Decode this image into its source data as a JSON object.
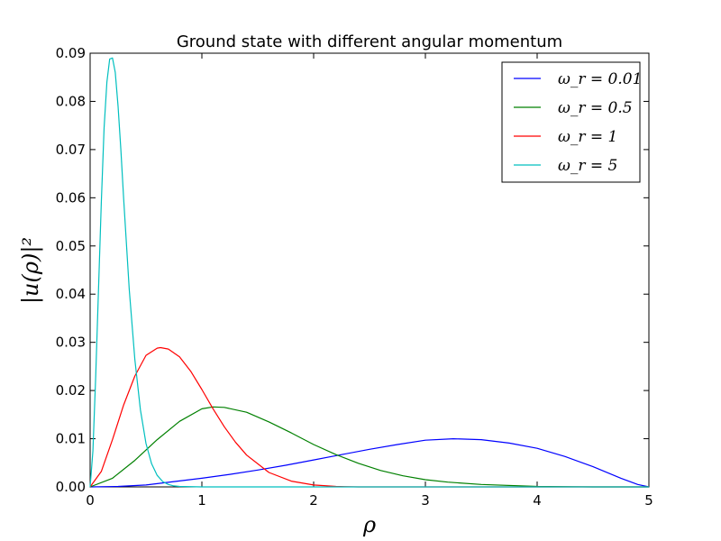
{
  "chart_data": {
    "type": "line",
    "title": "Ground state with different angular momentum",
    "xlabel": "ρ",
    "ylabel": "|u(ρ)|²",
    "xlim": [
      0,
      5
    ],
    "ylim": [
      0,
      0.09
    ],
    "xticks": [
      "0",
      "1",
      "2",
      "3",
      "4",
      "5"
    ],
    "yticks": [
      "0.00",
      "0.01",
      "0.02",
      "0.03",
      "0.04",
      "0.05",
      "0.06",
      "0.07",
      "0.08",
      "0.09"
    ],
    "grid": false,
    "legend_position": "top-right",
    "series": [
      {
        "name": "ω_r = 0.01",
        "color": "#0000ff",
        "x": [
          0,
          0.25,
          0.5,
          0.75,
          1.0,
          1.25,
          1.5,
          1.75,
          2.0,
          2.25,
          2.5,
          2.75,
          3.0,
          3.25,
          3.5,
          3.75,
          4.0,
          4.25,
          4.5,
          4.75,
          4.9,
          5.0
        ],
        "y": [
          0.0,
          0.0001,
          0.0004,
          0.0011,
          0.0018,
          0.0026,
          0.0035,
          0.0045,
          0.0056,
          0.0067,
          0.0078,
          0.0088,
          0.0097,
          0.01,
          0.0098,
          0.0091,
          0.008,
          0.0063,
          0.0042,
          0.0018,
          0.0005,
          0.0
        ]
      },
      {
        "name": "ω_r = 0.5",
        "color": "#008000",
        "x": [
          0,
          0.2,
          0.4,
          0.6,
          0.8,
          1.0,
          1.1,
          1.2,
          1.4,
          1.6,
          1.8,
          2.0,
          2.2,
          2.4,
          2.6,
          2.8,
          3.0,
          3.2,
          3.5,
          4.0,
          4.5,
          5.0
        ],
        "y": [
          0.0,
          0.0018,
          0.0055,
          0.0098,
          0.0136,
          0.0162,
          0.0166,
          0.0165,
          0.0155,
          0.0135,
          0.0112,
          0.0088,
          0.0067,
          0.0049,
          0.0034,
          0.0023,
          0.0015,
          0.001,
          0.0005,
          0.0001,
          0.0,
          0.0
        ]
      },
      {
        "name": "ω_r = 1",
        "color": "#ff0000",
        "x": [
          0,
          0.1,
          0.2,
          0.3,
          0.4,
          0.5,
          0.6,
          0.63,
          0.7,
          0.8,
          0.9,
          1.0,
          1.1,
          1.2,
          1.3,
          1.4,
          1.6,
          1.8,
          2.0,
          2.2,
          2.4,
          2.6,
          3.0,
          5.0
        ],
        "y": [
          0.0,
          0.0032,
          0.0098,
          0.017,
          0.023,
          0.0273,
          0.0288,
          0.0289,
          0.0286,
          0.027,
          0.024,
          0.0202,
          0.0162,
          0.0125,
          0.0093,
          0.0066,
          0.003,
          0.0012,
          0.0004,
          0.0001,
          0.0,
          0.0,
          0.0,
          0.0
        ]
      },
      {
        "name": "ω_r = 5",
        "color": "#00bfbf",
        "x": [
          0,
          0.025,
          0.05,
          0.075,
          0.1,
          0.125,
          0.15,
          0.175,
          0.2,
          0.225,
          0.25,
          0.275,
          0.3,
          0.35,
          0.4,
          0.45,
          0.5,
          0.55,
          0.6,
          0.65,
          0.7,
          0.75,
          0.8,
          1.0,
          5.0
        ],
        "y": [
          0.0,
          0.0075,
          0.023,
          0.041,
          0.059,
          0.0745,
          0.084,
          0.0888,
          0.089,
          0.086,
          0.079,
          0.07,
          0.0598,
          0.041,
          0.0265,
          0.016,
          0.009,
          0.0048,
          0.0024,
          0.0011,
          0.0005,
          0.0002,
          0.0001,
          0.0,
          0.0
        ]
      }
    ]
  }
}
